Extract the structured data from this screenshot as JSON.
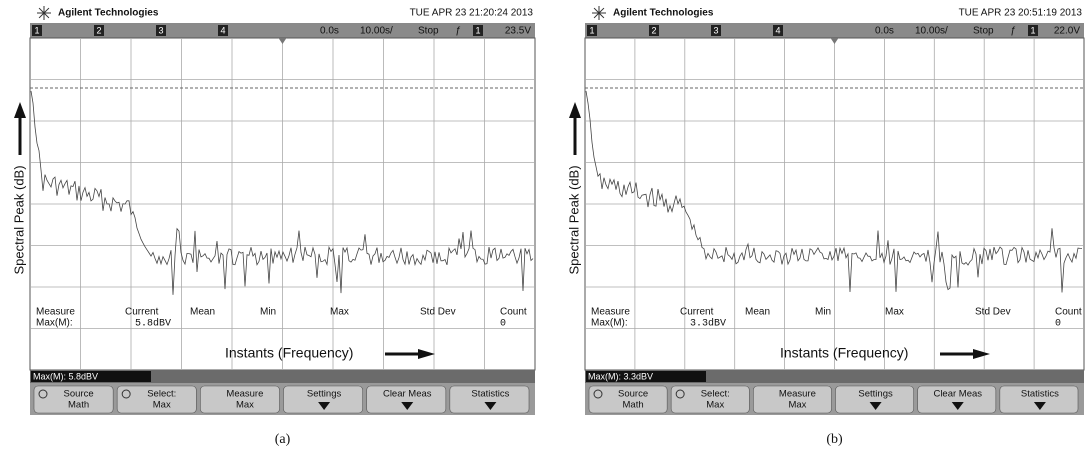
{
  "panels": [
    {
      "caption": "(a)",
      "brand": "Agilent Technologies",
      "timestamp": "TUE APR 23 21:20:24 2013",
      "channels": [
        "1",
        "2",
        "3",
        "4"
      ],
      "delay": "0.0s",
      "timebase": "10.00s/",
      "run_state": "Stop",
      "trigger_slope": "ƒ",
      "trigger_channel": "1",
      "trigger_level": "23.5V",
      "y_label": "Spectral Peak (dB)",
      "x_label": "Instants (Frequency)",
      "measure_headers": [
        "Measure",
        "Current",
        "Mean",
        "Min",
        "Max",
        "Std Dev",
        "Count"
      ],
      "measure_name": "Max(M):",
      "measure_current": "5.8dBV",
      "measure_count": "0",
      "status": "Max(M): 5.8dBV",
      "softkeys": [
        [
          "Source",
          "Math"
        ],
        [
          "Select:",
          "Max"
        ],
        [
          "Measure",
          "Max"
        ],
        [
          "Settings"
        ],
        [
          "Clear Meas"
        ],
        [
          "Statistics"
        ]
      ]
    },
    {
      "caption": "(b)",
      "brand": "Agilent Technologies",
      "timestamp": "TUE APR 23 20:51:19 2013",
      "channels": [
        "1",
        "2",
        "3",
        "4"
      ],
      "delay": "0.0s",
      "timebase": "10.00s/",
      "run_state": "Stop",
      "trigger_slope": "ƒ",
      "trigger_channel": "1",
      "trigger_level": "22.0V",
      "y_label": "Spectral Peak (dB)",
      "x_label": "Instants (Frequency)",
      "measure_headers": [
        "Measure",
        "Current",
        "Mean",
        "Min",
        "Max",
        "Std Dev",
        "Count"
      ],
      "measure_name": "Max(M):",
      "measure_current": "3.3dBV",
      "measure_count": "0",
      "status": "Max(M): 3.3dBV",
      "softkeys": [
        [
          "Source",
          "Math"
        ],
        [
          "Select:",
          "Max"
        ],
        [
          "Measure",
          "Max"
        ],
        [
          "Settings"
        ],
        [
          "Clear Meas"
        ],
        [
          "Statistics"
        ]
      ]
    }
  ]
}
